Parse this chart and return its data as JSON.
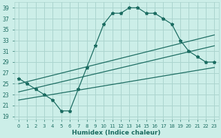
{
  "xlabel": "Humidex (Indice chaleur)",
  "xlim": [
    -0.5,
    23.5
  ],
  "ylim": [
    18.5,
    40
  ],
  "yticks": [
    19,
    21,
    23,
    25,
    27,
    29,
    31,
    33,
    35,
    37,
    39
  ],
  "xticks": [
    0,
    1,
    2,
    3,
    4,
    5,
    6,
    7,
    8,
    9,
    10,
    11,
    12,
    13,
    14,
    15,
    16,
    17,
    18,
    19,
    20,
    21,
    22,
    23
  ],
  "bg_color": "#cceee8",
  "grid_color": "#aad4ce",
  "line_color": "#1a6b60",
  "main_line": [
    26,
    25,
    24,
    23,
    22,
    20,
    20,
    24,
    28,
    32,
    36,
    38,
    38,
    39,
    39,
    38,
    38,
    37,
    36,
    33,
    31,
    30,
    29,
    29
  ],
  "line1_x": [
    0,
    23
  ],
  "line1_y": [
    25.0,
    34.0
  ],
  "line2_x": [
    0,
    23
  ],
  "line2_y": [
    23.5,
    32.0
  ],
  "line3_x": [
    0,
    23
  ],
  "line3_y": [
    22.0,
    28.0
  ]
}
